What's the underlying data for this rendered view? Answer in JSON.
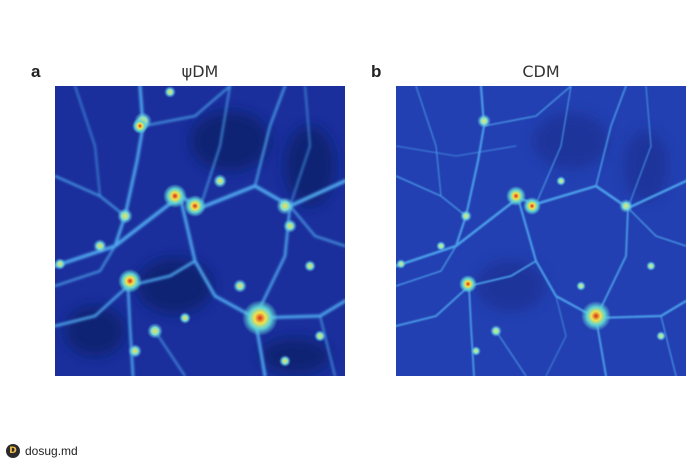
{
  "panels": [
    {
      "letter": "a",
      "title": "ψDM"
    },
    {
      "letter": "b",
      "title": "CDM"
    }
  ],
  "watermark": {
    "text": "dosug.md",
    "icon": "d-logo-icon"
  },
  "colors": {
    "background": "#1a2f9c",
    "void": "#0f1f6e",
    "filament": "#4fa8ef",
    "halo_core": "#d92a1a",
    "halo_mid": "#f2e14a",
    "halo_outer": "#5fd3d6"
  }
}
